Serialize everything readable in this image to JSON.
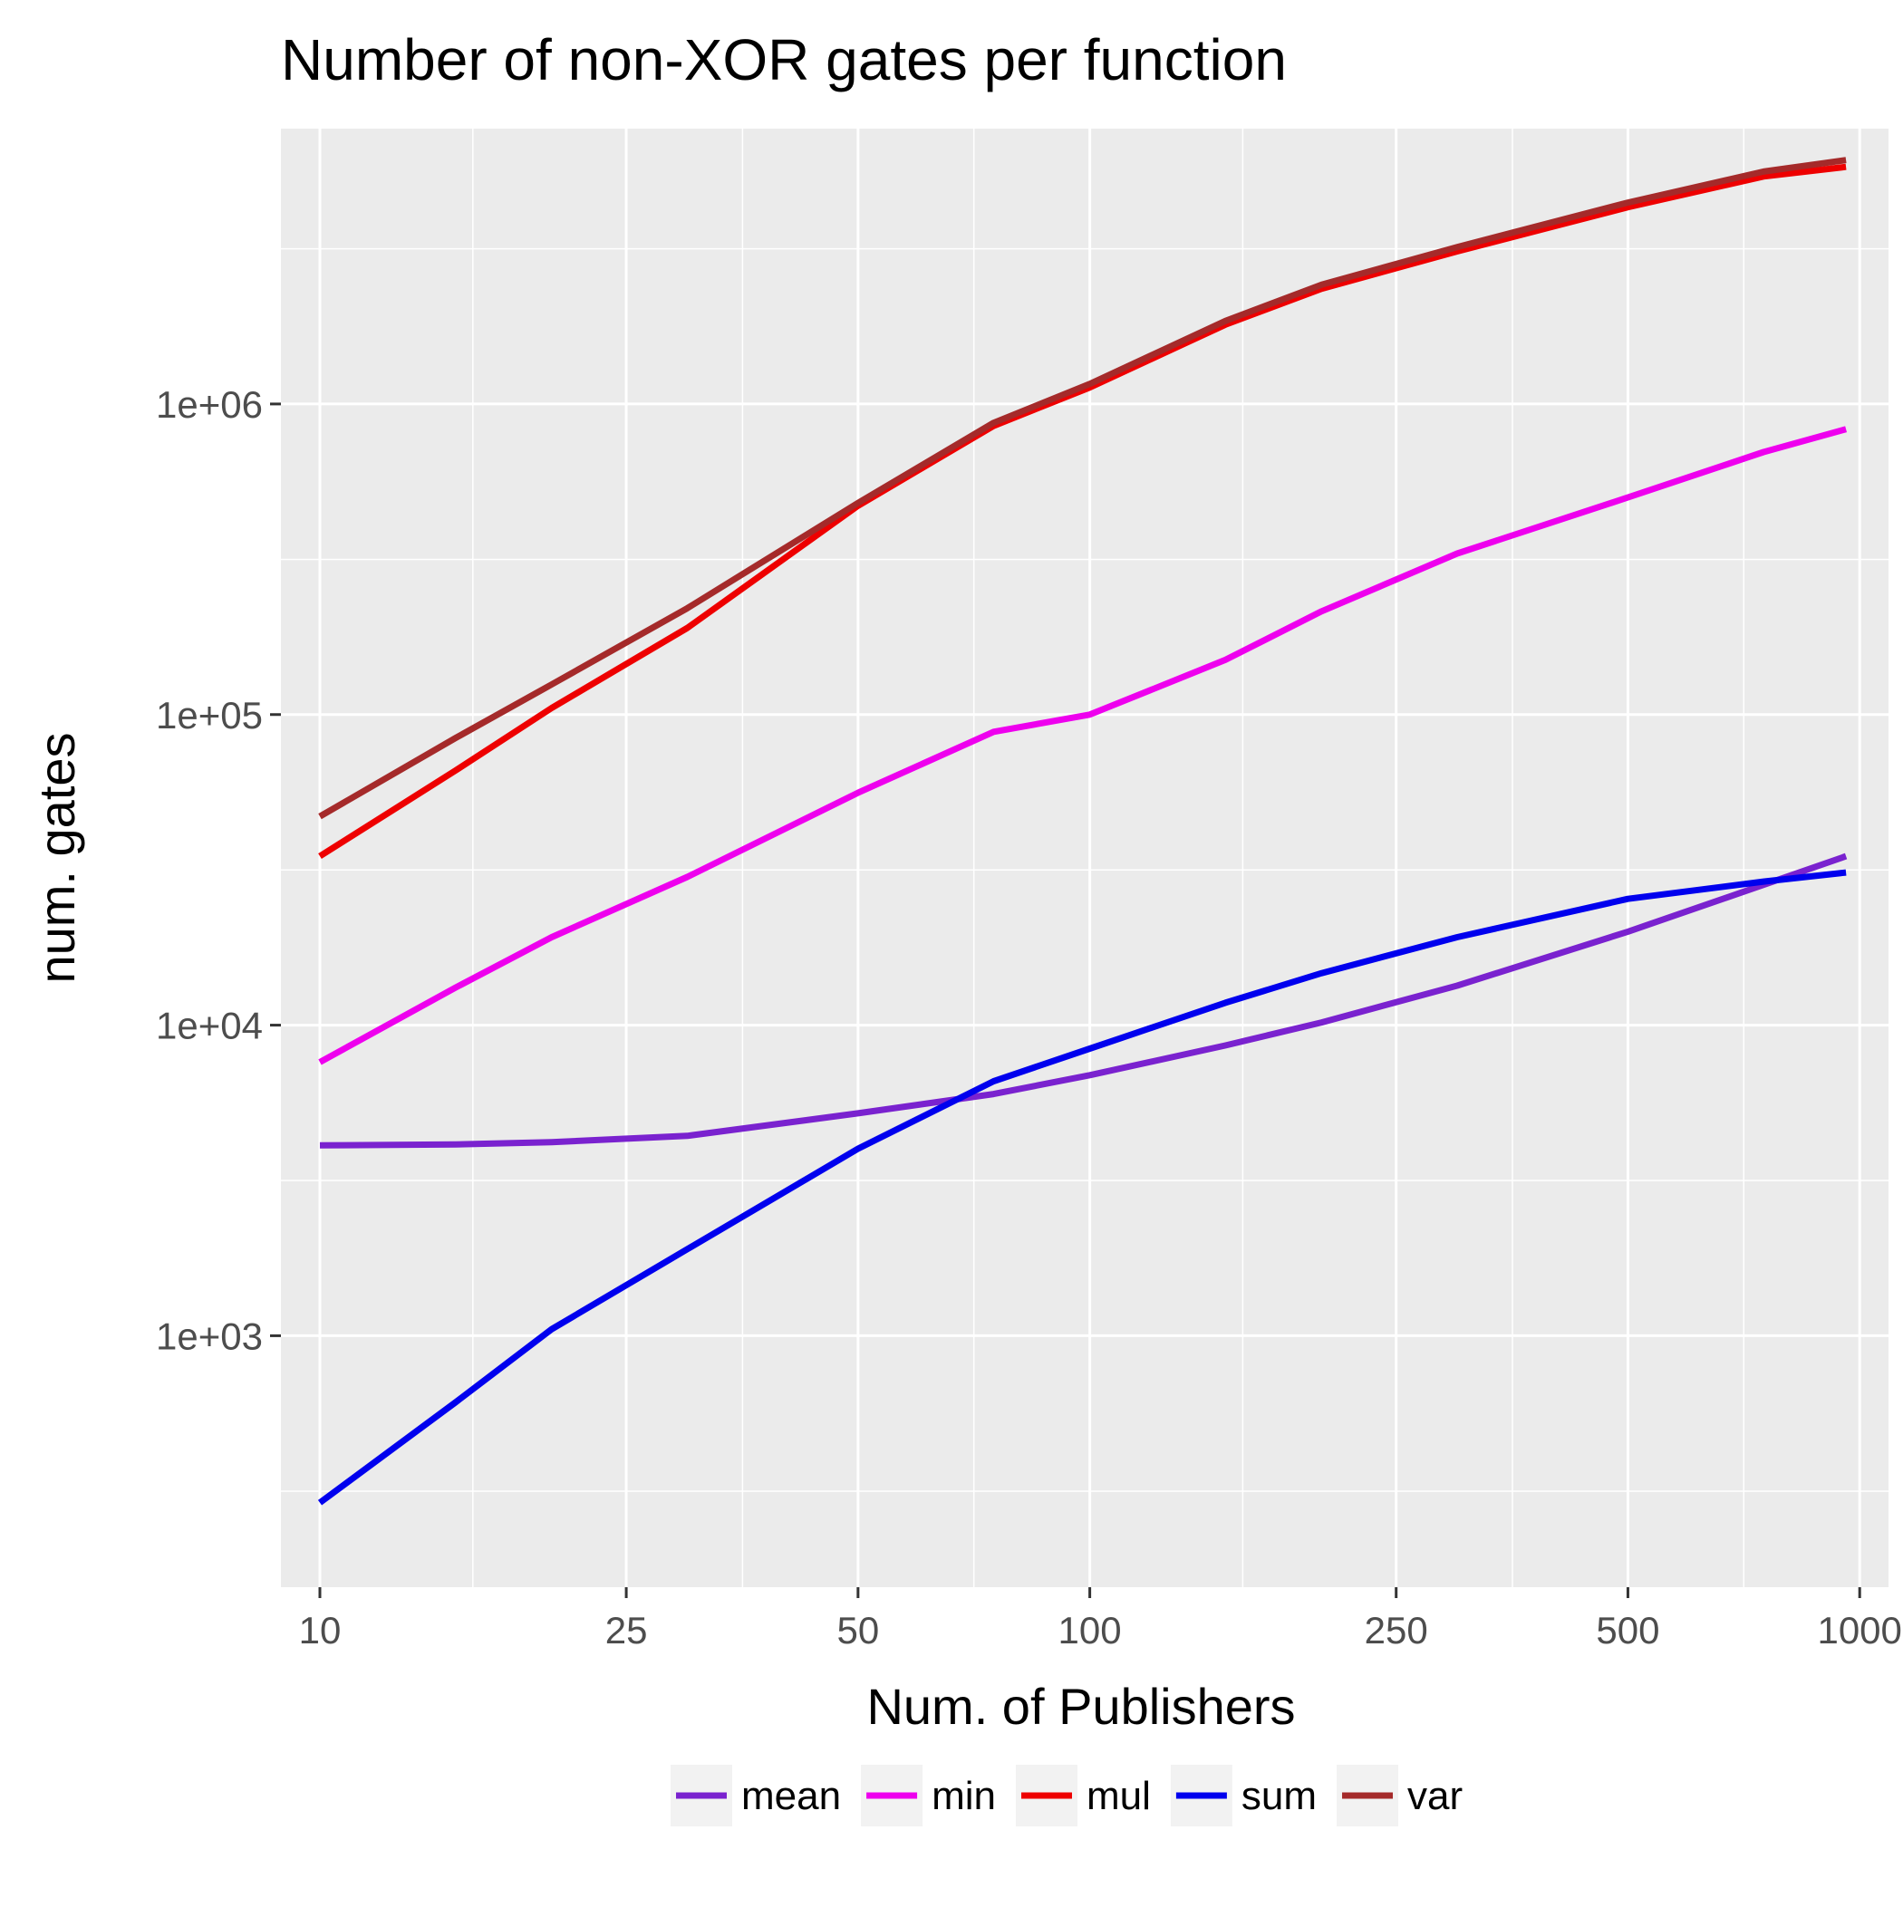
{
  "chart_data": {
    "type": "line",
    "title": "Number of non-XOR gates per function",
    "xlabel": "Num. of Publishers",
    "ylabel": "num. gates",
    "x_scale": "log",
    "y_scale": "log",
    "xlim": [
      8.9,
      1090
    ],
    "ylim": [
      155,
      7700000
    ],
    "x_ticks": [
      10,
      25,
      50,
      100,
      250,
      500,
      1000
    ],
    "x_tick_labels": [
      "10",
      "25",
      "50",
      "100",
      "250",
      "500",
      "1000"
    ],
    "x_minor_ticks": [
      15.8,
      35.4,
      70.7,
      158,
      354,
      707
    ],
    "y_ticks": [
      1000,
      10000,
      100000,
      1000000
    ],
    "y_tick_labels": [
      "1e+03",
      "1e+04",
      "1e+05",
      "1e+06"
    ],
    "y_minor_ticks": [
      316,
      3160,
      31600,
      316000,
      3160000
    ],
    "grid": true,
    "legend_position": "bottom",
    "x": [
      10,
      15,
      20,
      30,
      50,
      75,
      100,
      150,
      200,
      300,
      500,
      750,
      960
    ],
    "series": [
      {
        "name": "mean",
        "color": "#7a22cf",
        "values": [
          4100,
          4130,
          4200,
          4400,
          5200,
          6000,
          6900,
          8600,
          10200,
          13400,
          20000,
          28300,
          35000
        ]
      },
      {
        "name": "min",
        "color": "#ee00ee",
        "values": [
          7600,
          13200,
          19200,
          30000,
          56000,
          88000,
          100000,
          150000,
          215000,
          330000,
          500000,
          700000,
          830000
        ]
      },
      {
        "name": "mul",
        "color": "#ee0000",
        "values": [
          35000,
          66000,
          105000,
          190000,
          470000,
          850000,
          1130000,
          1800000,
          2350000,
          3100000,
          4300000,
          5400000,
          5800000
        ]
      },
      {
        "name": "sum",
        "color": "#0000ee",
        "values": [
          290,
          610,
          1050,
          1900,
          4000,
          6600,
          8400,
          11800,
          14700,
          19200,
          25500,
          29000,
          31000
        ]
      },
      {
        "name": "var",
        "color": "#a52a2a",
        "values": [
          47000,
          84000,
          125000,
          220000,
          480000,
          870000,
          1160000,
          1850000,
          2420000,
          3200000,
          4450000,
          5600000,
          6100000
        ]
      }
    ]
  }
}
